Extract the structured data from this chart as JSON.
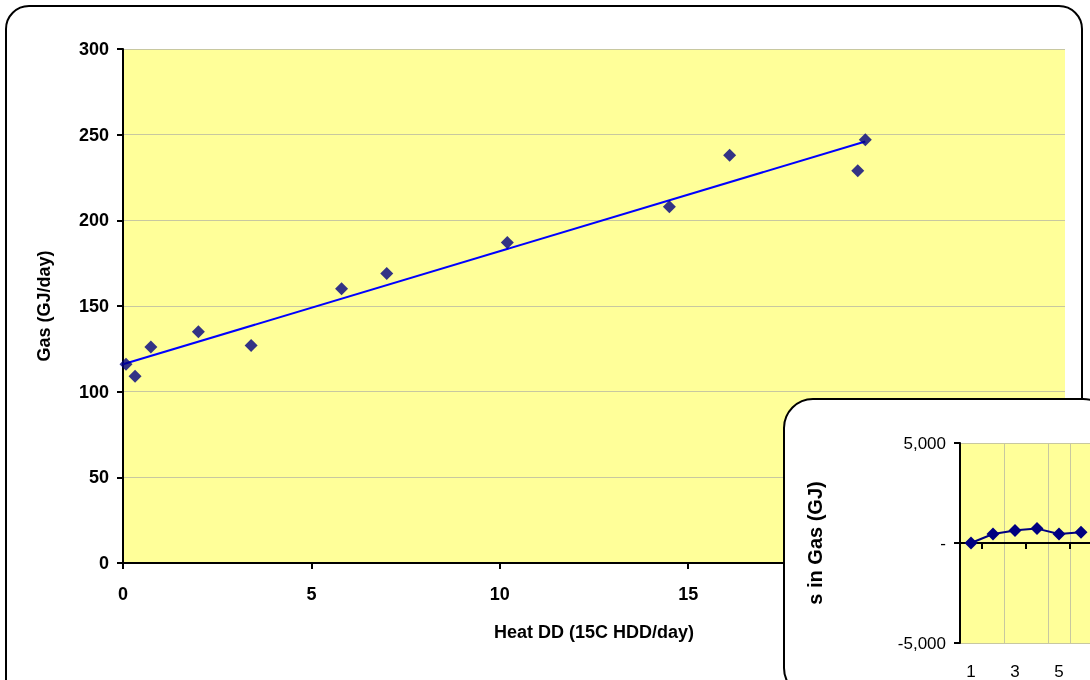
{
  "chart_data": [
    {
      "type": "scatter",
      "xlabel": "Heat DD (15C HDD/day)",
      "ylabel": "Gas (GJ/day)",
      "xlim": [
        0,
        25
      ],
      "xticks": [
        0,
        5,
        10,
        15
      ],
      "ylim": [
        0,
        300
      ],
      "yticks": [
        0,
        50,
        100,
        150,
        200,
        250,
        300
      ],
      "grid": "y",
      "marker": "diamond",
      "series": [
        {
          "color": "#000080",
          "x": [
            0.08,
            0.32,
            0.74,
            2.0,
            3.4,
            5.8,
            7.0,
            10.2,
            14.5,
            16.1,
            19.5,
            19.7
          ],
          "values": [
            116,
            109,
            126,
            135,
            127,
            160,
            169,
            187,
            208,
            238,
            229,
            247
          ]
        },
        {
          "type": "line",
          "color": "#0000ff",
          "marker": "none",
          "x": [
            0,
            19.7
          ],
          "values": [
            116,
            246
          ]
        }
      ]
    },
    {
      "type": "line",
      "ylabel": "s in Gas (GJ)",
      "categories": [
        "1",
        null,
        "3",
        null,
        "5",
        null
      ],
      "ylim": [
        -5000,
        5000
      ],
      "yticks": [
        {
          "value": -5000,
          "label": "-5,000"
        },
        {
          "value": 0,
          "label": "-"
        },
        {
          "value": 5000,
          "label": "5,000"
        }
      ],
      "grid": true,
      "marker": "diamond",
      "series": [
        {
          "color": "#000080",
          "values": [
            0,
            450,
            630,
            720,
            450,
            540
          ]
        }
      ]
    }
  ]
}
